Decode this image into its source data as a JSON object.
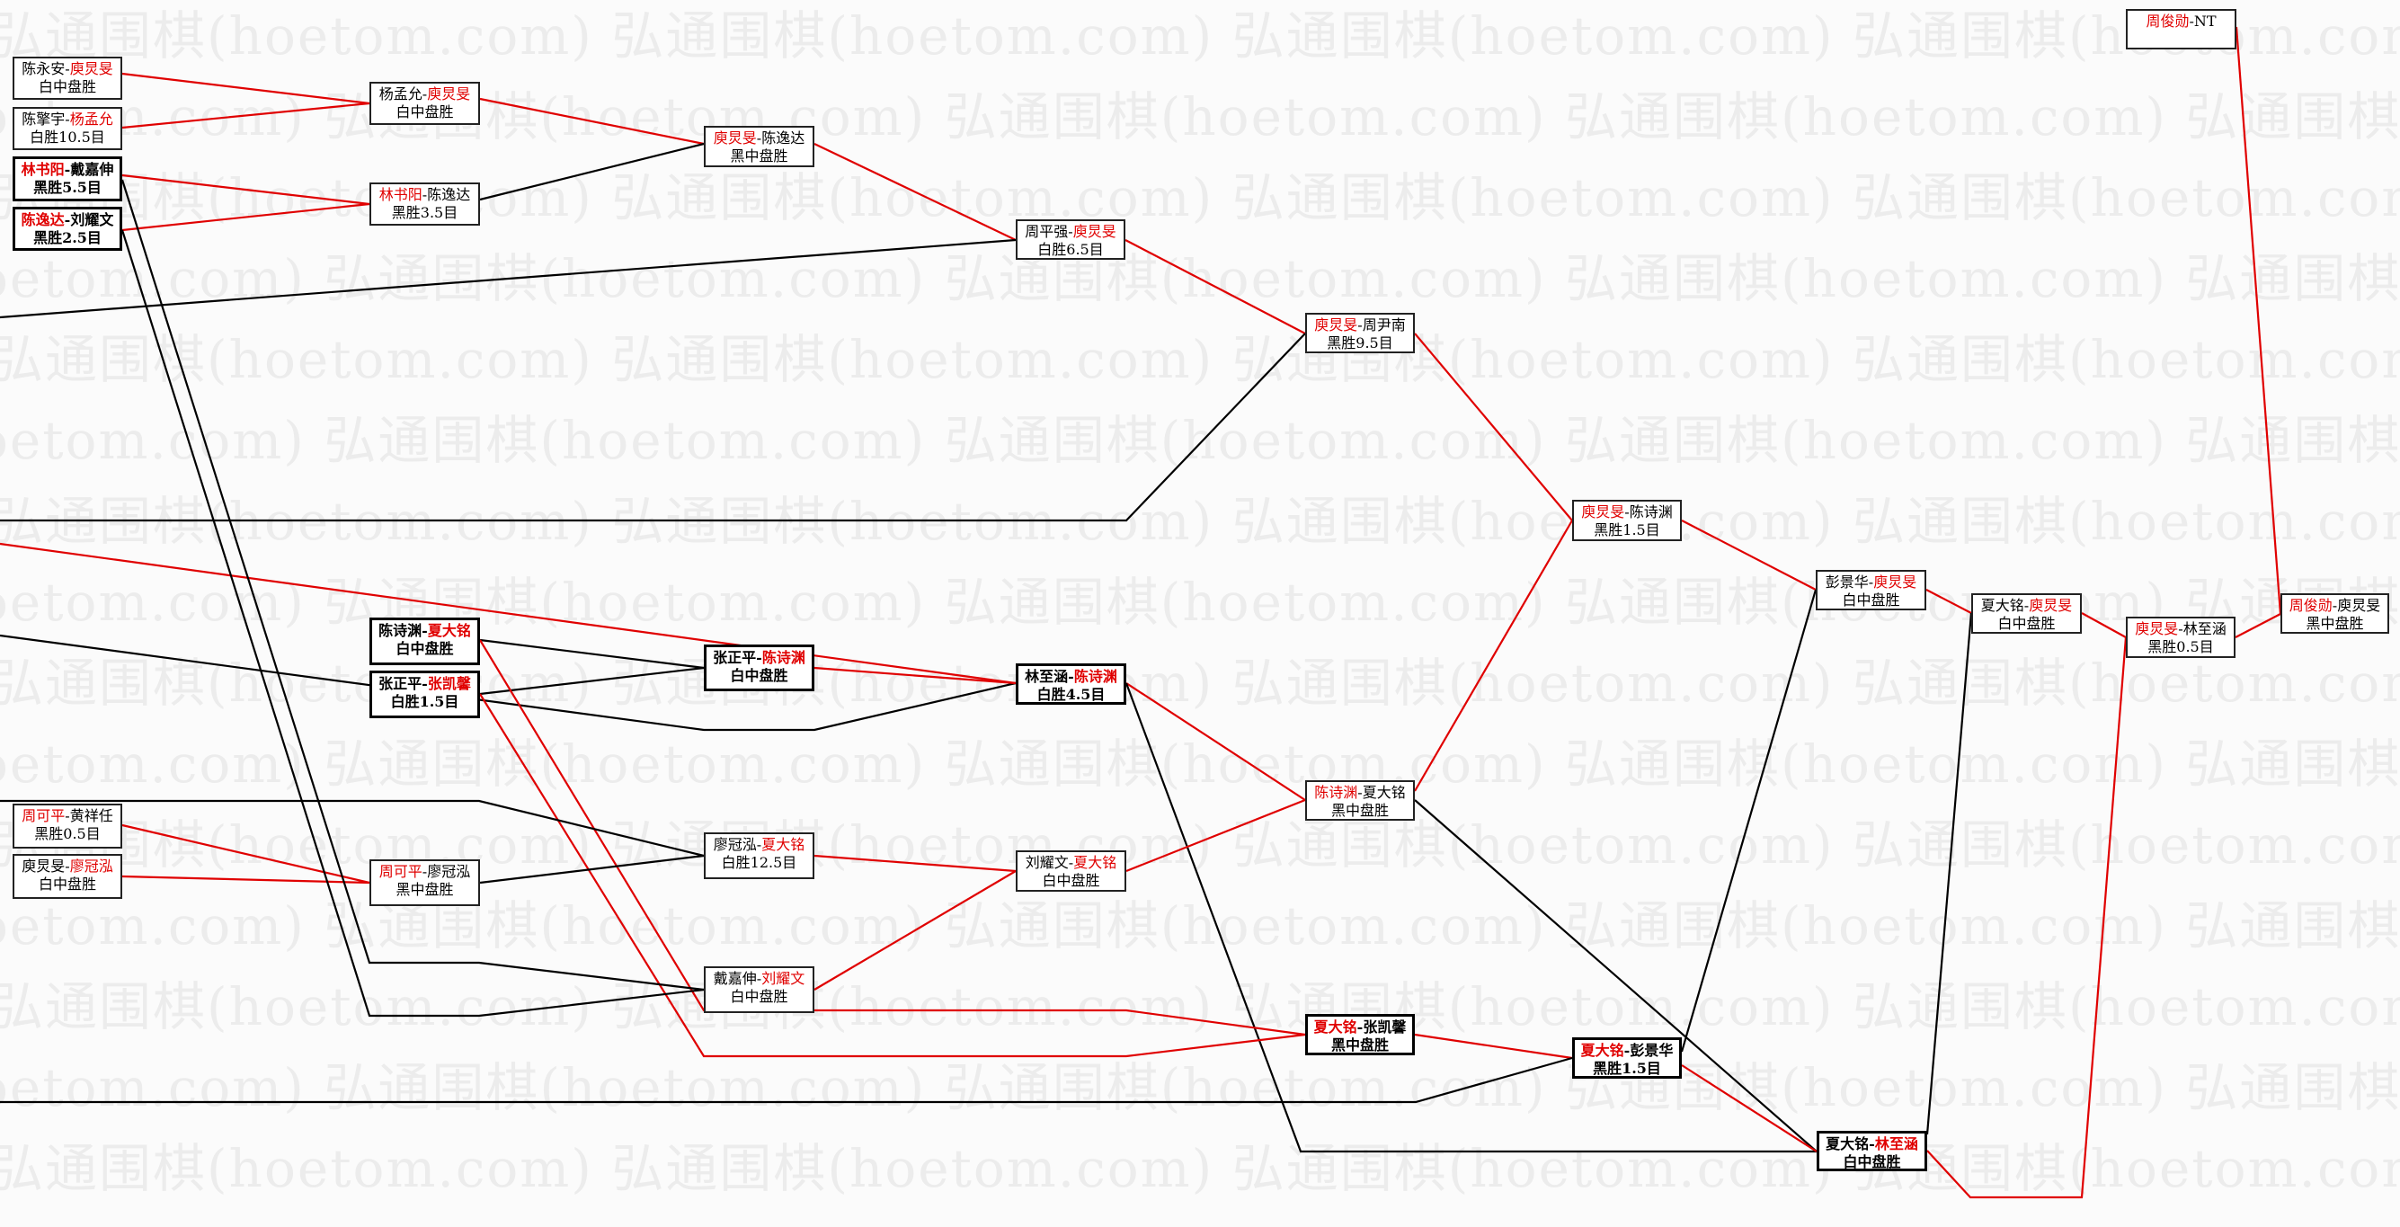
{
  "watermark": "弘通围棋(hoetom.com)",
  "colors": {
    "winner_line": "#e00000",
    "loser_line": "#000000",
    "winner_name": "#e00000"
  },
  "matches": [
    {
      "p1": "陈永安",
      "p2": "庾炅旻",
      "winner": 2,
      "result": "白中盘胜"
    },
    {
      "p1": "陈擎宇",
      "p2": "杨孟允",
      "winner": 2,
      "result": "白胜10.5目"
    },
    {
      "p1": "林书阳",
      "p2": "戴嘉伸",
      "winner": 1,
      "result": "黑胜5.5目"
    },
    {
      "p1": "陈逸达",
      "p2": "刘耀文",
      "winner": 1,
      "result": "黑胜2.5目"
    },
    {
      "p1": "周可平",
      "p2": "黄祥任",
      "winner": 1,
      "result": "黑胜0.5目"
    },
    {
      "p1": "庾炅旻",
      "p2": "廖冠泓",
      "winner": 2,
      "result": "白中盘胜"
    },
    {
      "p1": "杨孟允",
      "p2": "庾炅旻",
      "winner": 2,
      "result": "白中盘胜"
    },
    {
      "p1": "林书阳",
      "p2": "陈逸达",
      "winner": 1,
      "result": "黑胜3.5目"
    },
    {
      "p1": "陈诗渊",
      "p2": "夏大铭",
      "winner": 2,
      "result": "白中盘胜"
    },
    {
      "p1": "张正平",
      "p2": "张凯馨",
      "winner": 2,
      "result": "白胜1.5目"
    },
    {
      "p1": "周可平",
      "p2": "廖冠泓",
      "winner": 1,
      "result": "黑中盘胜"
    },
    {
      "p1": "庾炅旻",
      "p2": "陈逸达",
      "winner": 1,
      "result": "黑中盘胜"
    },
    {
      "p1": "张正平",
      "p2": "陈诗渊",
      "winner": 2,
      "result": "白中盘胜"
    },
    {
      "p1": "廖冠泓",
      "p2": "夏大铭",
      "winner": 2,
      "result": "白胜12.5目"
    },
    {
      "p1": "戴嘉伸",
      "p2": "刘耀文",
      "winner": 2,
      "result": "白中盘胜"
    },
    {
      "p1": "周平强",
      "p2": "庾炅旻",
      "winner": 2,
      "result": "白胜6.5目"
    },
    {
      "p1": "林至涵",
      "p2": "陈诗渊",
      "winner": 2,
      "result": "白胜4.5目"
    },
    {
      "p1": "刘耀文",
      "p2": "夏大铭",
      "winner": 2,
      "result": "白中盘胜"
    },
    {
      "p1": "庾炅旻",
      "p2": "周尹南",
      "winner": 1,
      "result": "黑胜9.5目"
    },
    {
      "p1": "陈诗渊",
      "p2": "夏大铭",
      "winner": 1,
      "result": "黑中盘胜"
    },
    {
      "p1": "夏大铭",
      "p2": "张凯馨",
      "winner": 1,
      "result": "黑中盘胜"
    },
    {
      "p1": "庾炅旻",
      "p2": "陈诗渊",
      "winner": 1,
      "result": "黑胜1.5目"
    },
    {
      "p1": "夏大铭",
      "p2": "彭景华",
      "winner": 1,
      "result": "黑胜1.5目"
    },
    {
      "p1": "彭景华",
      "p2": "庾炅旻",
      "winner": 2,
      "result": "白中盘胜"
    },
    {
      "p1": "夏大铭",
      "p2": "林至涵",
      "winner": 2,
      "result": "白中盘胜"
    },
    {
      "p1": "夏大铭",
      "p2": "庾炅旻",
      "winner": 2,
      "result": "白中盘胜"
    },
    {
      "p1": "庾炅旻",
      "p2": "林至涵",
      "winner": 1,
      "result": "黑胜0.5目"
    },
    {
      "p1": "周俊勋",
      "p2": "庾炅旻",
      "winner": 1,
      "result": "黑中盘胜"
    },
    {
      "p1": "周俊勋",
      "p2": "NT",
      "winner": 1,
      "result": ""
    }
  ]
}
